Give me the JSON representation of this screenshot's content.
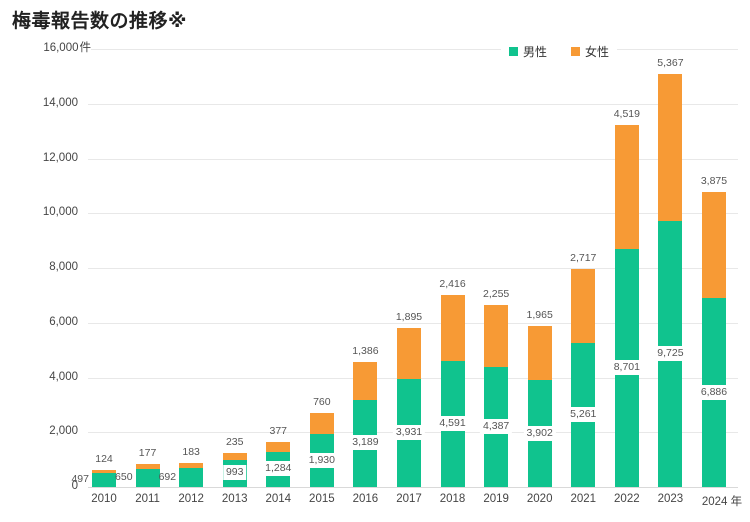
{
  "title": "梅毒報告数の推移※",
  "chart_data": {
    "type": "bar",
    "stacked": true,
    "title": "梅毒報告数の推移※",
    "categories": [
      "2010",
      "2011",
      "2012",
      "2013",
      "2014",
      "2015",
      "2016",
      "2017",
      "2018",
      "2019",
      "2020",
      "2021",
      "2022",
      "2023",
      "2024"
    ],
    "x_suffix": "年",
    "series": [
      {
        "name": "男性",
        "color": "#10C38E",
        "values": [
          497,
          650,
          692,
          993,
          1284,
          1930,
          3189,
          3931,
          4591,
          4387,
          3902,
          5261,
          8701,
          9725,
          6886
        ]
      },
      {
        "name": "女性",
        "color": "#F79A35",
        "values": [
          124,
          177,
          183,
          235,
          377,
          760,
          1386,
          1895,
          2416,
          2255,
          1965,
          2717,
          4519,
          5367,
          3875
        ]
      }
    ],
    "ylim": [
      0,
      16000
    ],
    "ytick_step": 2000,
    "y_unit": "件",
    "yticks": [
      "0",
      "2,000",
      "4,000",
      "6,000",
      "8,000",
      "10,000",
      "12,000",
      "14,000",
      "16,000"
    ],
    "grid": true,
    "legend_position": "top"
  }
}
